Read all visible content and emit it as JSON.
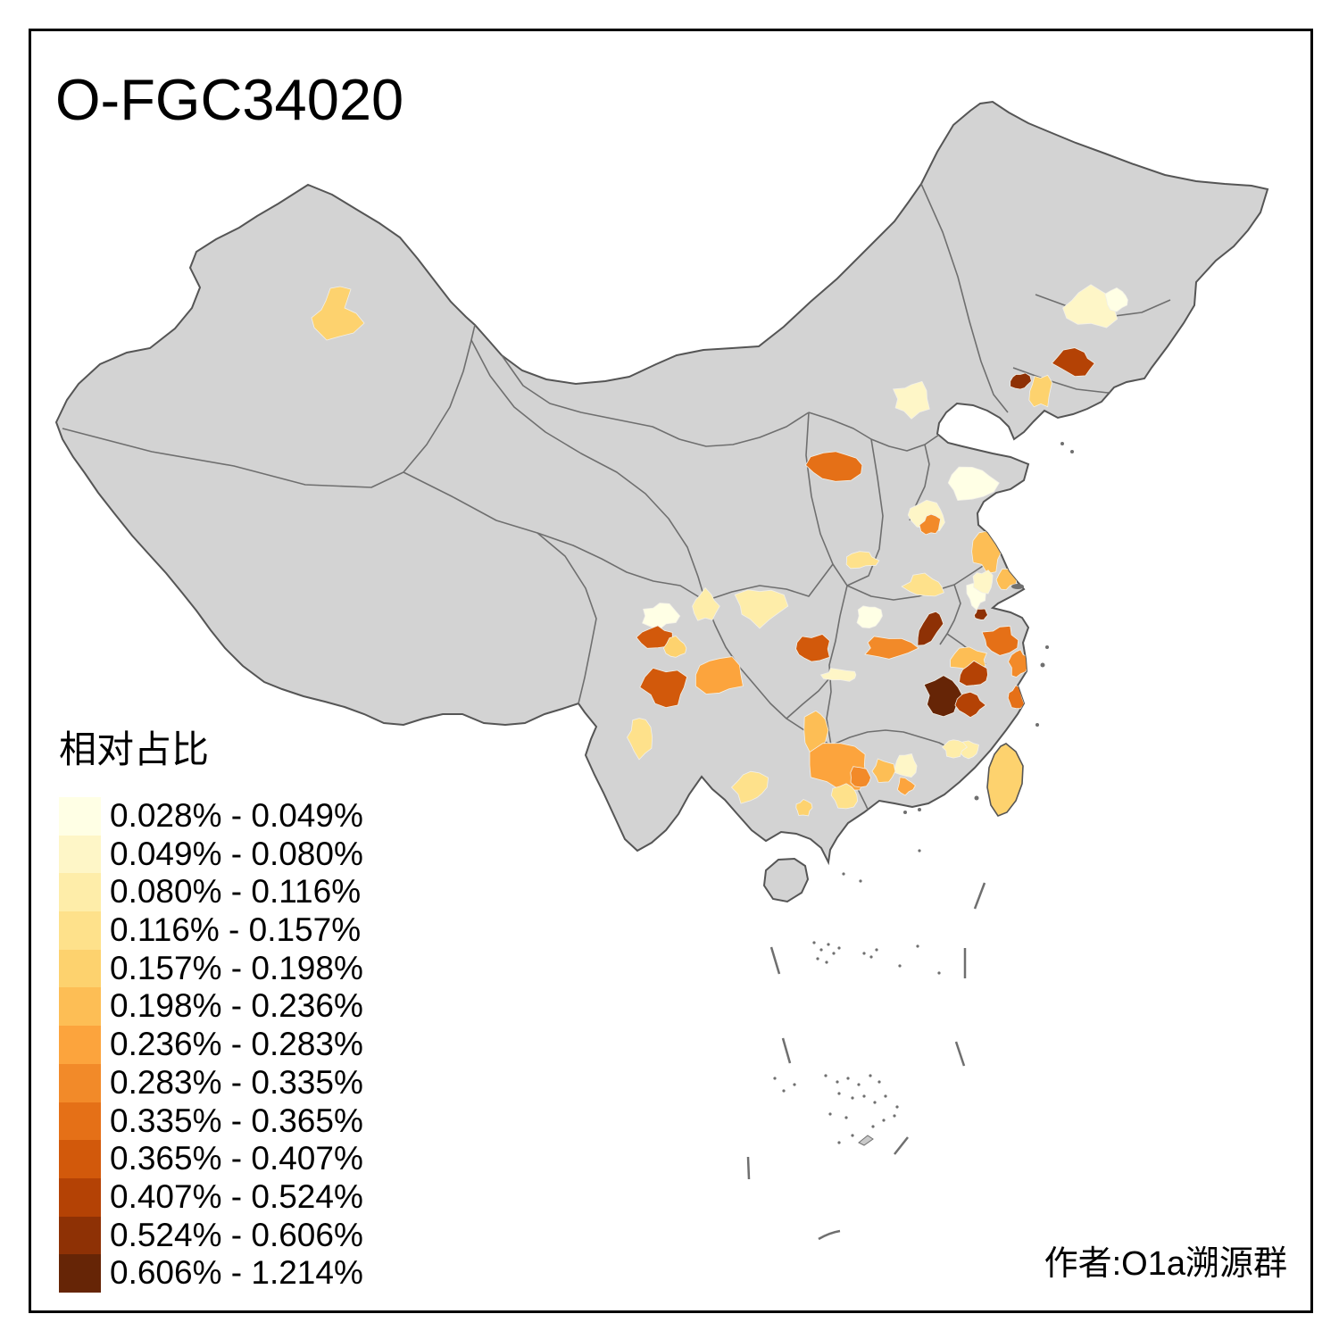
{
  "title": "O-FGC34020",
  "legend": {
    "title": "相对占比",
    "classes": [
      {
        "label": "0.028% - 0.049%",
        "color": "#FFFFE5"
      },
      {
        "label": "0.049% - 0.080%",
        "color": "#FEF6C7"
      },
      {
        "label": "0.080% - 0.116%",
        "color": "#FEEDA9"
      },
      {
        "label": "0.116% - 0.157%",
        "color": "#FEE18B"
      },
      {
        "label": "0.157% - 0.198%",
        "color": "#FDD26E"
      },
      {
        "label": "0.198% - 0.236%",
        "color": "#FDBE55"
      },
      {
        "label": "0.236% - 0.283%",
        "color": "#FCA43D"
      },
      {
        "label": "0.283% - 0.335%",
        "color": "#F28A29"
      },
      {
        "label": "0.335% - 0.365%",
        "color": "#E57017"
      },
      {
        "label": "0.365% - 0.407%",
        "color": "#D2590B"
      },
      {
        "label": "0.407% - 0.524%",
        "color": "#B44205"
      },
      {
        "label": "0.524% - 0.606%",
        "color": "#8E3105"
      },
      {
        "label": "0.606% - 1.214%",
        "color": "#662506"
      }
    ]
  },
  "attribution": "作者:O1a溯源群",
  "map": {
    "land_fill": "#D3D3D3",
    "national_border_color": "#555555",
    "province_border_color": "#6F6F6F",
    "island_feature_color": "#6F6F6F",
    "region_border_color": "#F2F0E8",
    "background": "#FFFFFF",
    "regions": [
      {
        "id": "r1",
        "class": 5
      },
      {
        "id": "r2",
        "class": 2
      },
      {
        "id": "r3",
        "class": 1
      },
      {
        "id": "r4",
        "class": 11
      },
      {
        "id": "r5",
        "class": 12
      },
      {
        "id": "r6",
        "class": 5
      },
      {
        "id": "r7",
        "class": 2
      },
      {
        "id": "r8",
        "class": 9
      },
      {
        "id": "r9",
        "class": 1
      },
      {
        "id": "r10",
        "class": 2
      },
      {
        "id": "r11",
        "class": 8
      },
      {
        "id": "r12",
        "class": 6
      },
      {
        "id": "r13",
        "class": 6
      },
      {
        "id": "r14",
        "class": 4
      },
      {
        "id": "r15",
        "class": 4
      },
      {
        "id": "r16",
        "class": 1
      },
      {
        "id": "r17",
        "class": 1
      },
      {
        "id": "r18",
        "class": 8
      },
      {
        "id": "r19",
        "class": 12
      },
      {
        "id": "r20",
        "class": 12
      },
      {
        "id": "r21",
        "class": 9
      },
      {
        "id": "r22",
        "class": 8
      },
      {
        "id": "r23",
        "class": 6
      },
      {
        "id": "r24",
        "class": 11
      },
      {
        "id": "r25",
        "class": 13
      },
      {
        "id": "r26",
        "class": 11
      },
      {
        "id": "r27",
        "class": 9
      },
      {
        "id": "r28",
        "class": 10
      },
      {
        "id": "r29",
        "class": 2
      },
      {
        "id": "r30",
        "class": 6
      },
      {
        "id": "r31",
        "class": 7
      },
      {
        "id": "r32",
        "class": 8
      },
      {
        "id": "r33",
        "class": 4
      },
      {
        "id": "r34",
        "class": 4
      },
      {
        "id": "r35",
        "class": 1
      },
      {
        "id": "r36",
        "class": 10
      },
      {
        "id": "r37",
        "class": 5
      },
      {
        "id": "r38",
        "class": 3
      },
      {
        "id": "r39",
        "class": 3
      },
      {
        "id": "r40",
        "class": 10
      },
      {
        "id": "r41",
        "class": 7
      },
      {
        "id": "r42",
        "class": 2
      },
      {
        "id": "r43",
        "class": 7
      },
      {
        "id": "r44",
        "class": 4
      },
      {
        "id": "r45",
        "class": 3
      },
      {
        "id": "r46",
        "class": 5
      },
      {
        "id": "r47",
        "class": 5
      },
      {
        "id": "r48",
        "class": 8
      },
      {
        "id": "r49",
        "class": 8
      },
      {
        "id": "r50",
        "class": 2
      },
      {
        "id": "r51",
        "class": 6
      },
      {
        "id": "r52",
        "class": 3
      }
    ]
  }
}
